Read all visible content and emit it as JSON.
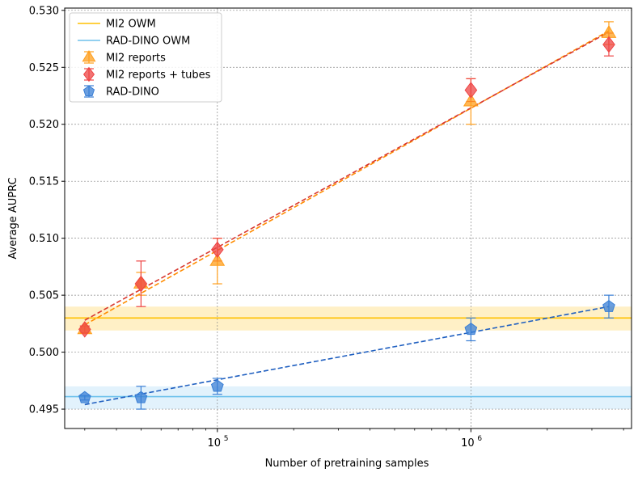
{
  "chart_data": {
    "type": "scatter",
    "title": "",
    "xlabel": "Number of pretraining samples",
    "ylabel": "Average AUPRC",
    "xscale": "log",
    "xlim": [
      25000,
      4300000
    ],
    "ylim": [
      0.4933,
      0.5302
    ],
    "grid": true,
    "legend_position": "top-left",
    "x_ticks": [
      {
        "value": 100000,
        "label": "10",
        "exp": "5"
      },
      {
        "value": 1000000,
        "label": "10",
        "exp": "6"
      }
    ],
    "y_ticks": [
      {
        "value": 0.495,
        "label": "0.495"
      },
      {
        "value": 0.5,
        "label": "0.500"
      },
      {
        "value": 0.505,
        "label": "0.505"
      },
      {
        "value": 0.51,
        "label": "0.510"
      },
      {
        "value": 0.515,
        "label": "0.515"
      },
      {
        "value": 0.52,
        "label": "0.520"
      },
      {
        "value": 0.525,
        "label": "0.525"
      },
      {
        "value": 0.53,
        "label": "0.530"
      }
    ],
    "reference_lines": [
      {
        "name": "MI2 OWM",
        "value": 0.503,
        "band": [
          0.5019,
          0.504
        ],
        "color": "#ffc000",
        "band_color": "#fff0c6"
      },
      {
        "name": "RAD-DINO OWM",
        "value": 0.4961,
        "band": [
          0.495,
          0.497
        ],
        "color": "#6ec1ec",
        "band_color": "#e2f2fc"
      }
    ],
    "series": [
      {
        "name": "MI2 reports",
        "marker": "triangle",
        "color": "#ff9f1c",
        "trend_color": "#ff8c00",
        "x": [
          30000,
          50000,
          100000,
          1000000,
          3500000
        ],
        "y": [
          0.502,
          0.506,
          0.508,
          0.522,
          0.528
        ],
        "err": [
          0.0003,
          0.001,
          0.002,
          0.002,
          0.001
        ],
        "trend": [
          [
            30000,
            0.5024
          ],
          [
            3500000,
            0.5282
          ]
        ]
      },
      {
        "name": "MI2 reports + tubes",
        "marker": "diamond",
        "color": "#ee4444",
        "trend_color": "#d8382f",
        "x": [
          30000,
          50000,
          100000,
          1000000,
          3500000
        ],
        "y": [
          0.502,
          0.506,
          0.509,
          0.523,
          0.527
        ],
        "err": [
          0.0003,
          0.002,
          0.001,
          0.001,
          0.001
        ],
        "trend": [
          [
            30000,
            0.5028
          ],
          [
            3500000,
            0.5281
          ]
        ]
      },
      {
        "name": "RAD-DINO",
        "marker": "pentagon",
        "color": "#3a7fd5",
        "trend_color": "#1f5fc0",
        "x": [
          30000,
          50000,
          100000,
          1000000,
          3500000
        ],
        "y": [
          0.496,
          0.496,
          0.497,
          0.502,
          0.504
        ],
        "err": [
          0.0002,
          0.001,
          0.0007,
          0.001,
          0.001
        ],
        "trend": [
          [
            30000,
            0.4954
          ],
          [
            3500000,
            0.504
          ]
        ]
      }
    ]
  }
}
